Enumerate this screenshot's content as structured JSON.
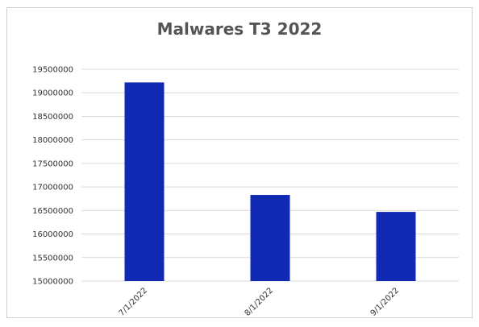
{
  "chart_data": {
    "type": "bar",
    "title": "Malwares T3 2022",
    "xlabel": "",
    "ylabel": "",
    "categories": [
      "7/1/2022",
      "8/1/2022",
      "9/1/2022"
    ],
    "series": [
      {
        "values": [
          19220000,
          16830000,
          16470000
        ]
      }
    ],
    "ylim": [
      15000000,
      19500000
    ],
    "yticks": [
      "15000000",
      "15500000",
      "16000000",
      "16500000",
      "17000000",
      "17500000",
      "18000000",
      "18500000",
      "19000000",
      "19500000"
    ],
    "ytick_values": [
      15000000,
      15500000,
      16000000,
      16500000,
      17000000,
      17500000,
      18000000,
      18500000,
      19000000,
      19500000
    ],
    "grid": true,
    "legend": "none",
    "bar_color": "#1229b3",
    "grid_color": "#d9d9d9"
  }
}
